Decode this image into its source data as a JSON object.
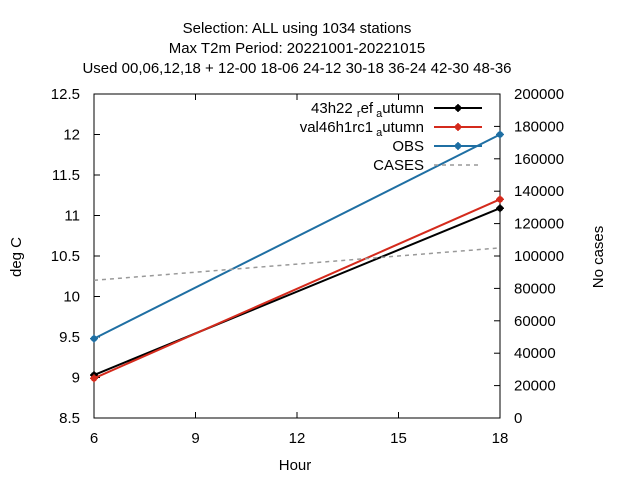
{
  "chart_data": {
    "type": "line",
    "title_lines": [
      "Selection: ALL using  1034 stations",
      "Max T2m   Period: 20221001-20221015",
      "Used  00,06,12,18  + 12-00 18-06 24-12 30-18 36-24 42-30 48-36"
    ],
    "xlabel": "Hour",
    "ylabel": "deg C",
    "y2label": "No cases",
    "xlim": [
      6,
      18
    ],
    "ylim": [
      8.5,
      12.5
    ],
    "y2lim": [
      0,
      200000
    ],
    "x_ticks": [
      "6",
      "9",
      "12",
      "15",
      "18"
    ],
    "y_ticks": [
      "8.5",
      "9",
      "9.5",
      "10",
      "10.5",
      "11",
      "11.5",
      "12",
      "12.5"
    ],
    "y2_ticks": [
      "0",
      "20000",
      "40000",
      "60000",
      "80000",
      "100000",
      "120000",
      "140000",
      "160000",
      "180000",
      "200000"
    ],
    "legend_position": "top-right",
    "grid": false,
    "series": [
      {
        "name": "43h22_ref_autumn",
        "legend_main": "43h22",
        "legend_sub1": "r",
        "legend_mid": "ef",
        "legend_sub2": "a",
        "legend_tail": "utumn",
        "axis": "left",
        "color": "#000000",
        "style": "solid",
        "marker": true,
        "x": [
          6,
          18
        ],
        "y": [
          9.03,
          11.09
        ]
      },
      {
        "name": "val46h1rc1_autumn",
        "legend_main": "val46h1rc1",
        "legend_sub2": "a",
        "legend_tail": "utumn",
        "axis": "left",
        "color": "#d42a1c",
        "style": "solid",
        "marker": true,
        "x": [
          6,
          18
        ],
        "y": [
          8.99,
          11.2
        ]
      },
      {
        "name": "OBS",
        "axis": "left",
        "color": "#1f6fa3",
        "style": "solid",
        "marker": true,
        "x": [
          6,
          18
        ],
        "y": [
          9.48,
          12.0
        ]
      },
      {
        "name": "CASES",
        "axis": "right",
        "color": "#999999",
        "style": "dashed",
        "marker": false,
        "x": [
          6,
          18
        ],
        "y": [
          85000,
          105000
        ]
      }
    ]
  }
}
